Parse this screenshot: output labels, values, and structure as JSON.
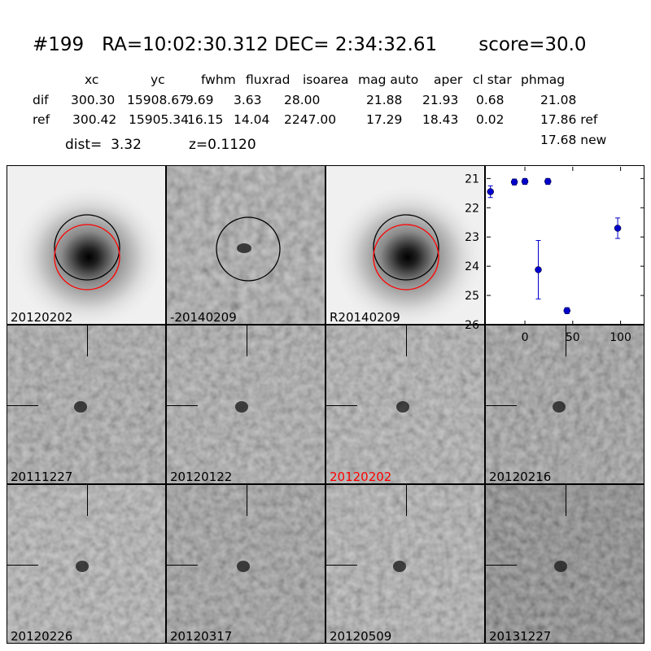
{
  "header": {
    "title": "#199   RA=10:02:30.312 DEC= 2:34:32.61       score=30.0",
    "cols": [
      "xc",
      "yc",
      "fwhm",
      "fluxrad",
      "isoarea",
      "mag auto",
      "aper",
      "cl star",
      "phmag"
    ],
    "rows": [
      {
        "label": "dif",
        "values": [
          "300.30",
          "15908.67",
          "9.69",
          "3.63",
          "28.00",
          "21.88",
          "21.93",
          "0.68",
          "21.08"
        ]
      },
      {
        "label": "ref",
        "values": [
          "300.42",
          "15905.34",
          "16.15",
          "14.04",
          "2247.00",
          "17.29",
          "18.43",
          "0.02",
          "17.86 ref"
        ]
      }
    ],
    "new_mag": "17.68 new",
    "dist": "dist=  3.32",
    "z": "z=0.1120"
  },
  "panels": {
    "top": [
      {
        "label": "20120202",
        "kind": "galaxy"
      },
      {
        "label": "-20140209",
        "kind": "diff"
      },
      {
        "label": "R20140209",
        "kind": "galaxy"
      }
    ],
    "cutouts": [
      {
        "label": "20111227",
        "highlight": false,
        "shade": "#9a9a9a"
      },
      {
        "label": "20120122",
        "highlight": false,
        "shade": "#9d9d9d"
      },
      {
        "label": "20120202",
        "highlight": true,
        "shade": "#a3a3a3"
      },
      {
        "label": "20120216",
        "highlight": false,
        "shade": "#8f8f8f"
      },
      {
        "label": "20120226",
        "highlight": false,
        "shade": "#a8a8a8"
      },
      {
        "label": "20120317",
        "highlight": false,
        "shade": "#8c8c8c"
      },
      {
        "label": "20120509",
        "highlight": false,
        "shade": "#a5a5a5"
      },
      {
        "label": "20131227",
        "highlight": false,
        "shade": "#6e6e6e"
      }
    ],
    "highlight_color": "#ff0000"
  },
  "chart_data": {
    "type": "scatter",
    "title": "",
    "xlabel": "",
    "ylabel": "",
    "xlim": [
      -40,
      125
    ],
    "ylim": [
      26,
      20.6
    ],
    "y_inverted": true,
    "xticks": [
      0,
      50,
      100
    ],
    "yticks": [
      21,
      22,
      23,
      24,
      25,
      26
    ],
    "color": "#0000cc",
    "points": [
      {
        "x": -36,
        "y": 21.45,
        "yerr": 0.2
      },
      {
        "x": -11,
        "y": 21.12,
        "yerr": 0.1
      },
      {
        "x": 0,
        "y": 21.1,
        "yerr": 0.1
      },
      {
        "x": 14,
        "y": 24.12,
        "yerr": 1.0
      },
      {
        "x": 24,
        "y": 21.1,
        "yerr": 0.1
      },
      {
        "x": 44,
        "y": 25.52,
        "yerr": 0.1
      },
      {
        "x": 97,
        "y": 22.7,
        "yerr": 0.35
      }
    ]
  }
}
